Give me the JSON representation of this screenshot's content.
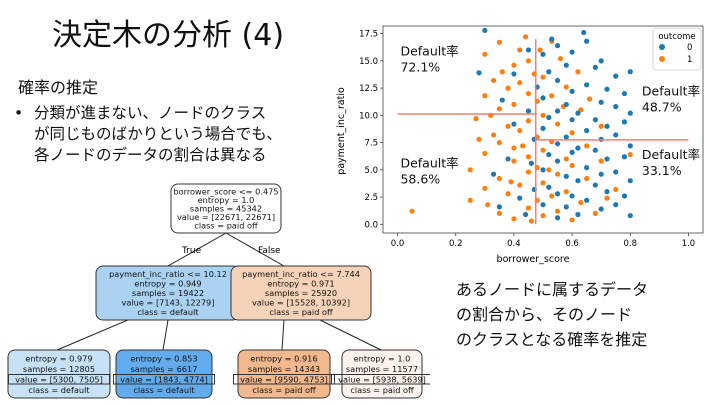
{
  "slide": {
    "title": "決定木の分析 (4)",
    "subtitle": "確率の推定",
    "bullet_marker": "•",
    "bullet_lines": [
      "分類が進まない、ノードのクラス",
      "が同じものばかりという場合でも、",
      "各ノードのデータの割合は異なる"
    ],
    "note_lines": [
      "あるノードに属するデータ",
      "の割合から、そのノード",
      "のクラスとなる確率を推定"
    ]
  },
  "tree": {
    "edge_true": "True",
    "edge_false": "False",
    "nodes": [
      {
        "id": "root",
        "fill": "#ffffff",
        "lines": [
          "borrower_score <= 0.475",
          "entropy = 1.0",
          "samples = 45342",
          "value = [22671, 22671]",
          "class = paid off"
        ]
      },
      {
        "id": "left",
        "fill": "#a9d2f3",
        "lines": [
          "payment_inc_ratio <= 10.12",
          "entropy = 0.949",
          "samples = 19422",
          "value = [7143, 12279]",
          "class = default"
        ]
      },
      {
        "id": "right",
        "fill": "#f6d3b8",
        "lines": [
          "payment_inc_ratio <= 7.744",
          "entropy = 0.971",
          "samples = 25920",
          "value = [15528, 10392]",
          "class = paid off"
        ]
      },
      {
        "id": "ll",
        "fill": "#c7e2f7",
        "lines": [
          "entropy = 0.979",
          "samples = 12805",
          "value = [5300, 7505]",
          "class = default"
        ]
      },
      {
        "id": "lr",
        "fill": "#62aced",
        "lines": [
          "entropy = 0.853",
          "samples = 6617",
          "value = [1843, 4774]",
          "class = default"
        ]
      },
      {
        "id": "rl",
        "fill": "#f2b88e",
        "lines": [
          "entropy = 0.916",
          "samples = 14343",
          "value = [9590, 4753]",
          "class = paid off"
        ]
      },
      {
        "id": "rr",
        "fill": "#fdf3ec",
        "lines": [
          "entropy = 1.0",
          "samples = 11577",
          "value = [5938, 5639]",
          "class = paid off"
        ]
      }
    ]
  },
  "chart_data": {
    "type": "scatter",
    "xlabel": "borrower_score",
    "ylabel": "payment_inc_ratio",
    "xlim": [
      -0.05,
      1.05
    ],
    "ylim": [
      -0.8,
      18.2
    ],
    "xticks": [
      0.0,
      0.2,
      0.4,
      0.6,
      0.8,
      1.0
    ],
    "xtick_labels": [
      "0.0",
      "0.2",
      "0.4",
      "0.6",
      "0.8",
      "1.0"
    ],
    "yticks": [
      0.0,
      2.5,
      5.0,
      7.5,
      10.0,
      12.5,
      15.0,
      17.5
    ],
    "ytick_labels": [
      "0.0",
      "2.5",
      "5.0",
      "7.5",
      "10.0",
      "12.5",
      "15.0",
      "17.5"
    ],
    "legend": {
      "title": "outcome",
      "placement": "top-right",
      "entries": [
        "0",
        "1"
      ]
    },
    "colors": {
      "0": "#1f77b4",
      "1": "#ff7f0e",
      "split": "#f08070"
    },
    "splits": [
      {
        "orientation": "vertical",
        "x": 0.475,
        "y0": 0.0,
        "y1": 17.0
      },
      {
        "orientation": "horizontal",
        "y": 10.12,
        "x0": 0.0,
        "x1": 0.475
      },
      {
        "orientation": "horizontal",
        "y": 7.744,
        "x0": 0.475,
        "x1": 1.0
      }
    ],
    "annotations": [
      {
        "text": [
          "Default率",
          "72.1%"
        ],
        "x": 0.01,
        "y": 15.5
      },
      {
        "text": [
          "Default率",
          "58.6%"
        ],
        "x": 0.01,
        "y": 5.2
      },
      {
        "text": [
          "Default率",
          "48.7%"
        ],
        "x": 0.84,
        "y": 11.8
      },
      {
        "text": [
          "Default率",
          "33.1%"
        ],
        "x": 0.84,
        "y": 6.0
      }
    ],
    "series": [
      {
        "name": "1",
        "points": [
          [
            0.05,
            1.2
          ],
          [
            0.25,
            2.2
          ],
          [
            0.25,
            5.0
          ],
          [
            0.27,
            9.7
          ],
          [
            0.3,
            3.3
          ],
          [
            0.3,
            6.5
          ],
          [
            0.3,
            11.8
          ],
          [
            0.3,
            15.6
          ],
          [
            0.33,
            8.2
          ],
          [
            0.33,
            13.2
          ],
          [
            0.35,
            1.0
          ],
          [
            0.35,
            4.2
          ],
          [
            0.35,
            7.5
          ],
          [
            0.35,
            10.6
          ],
          [
            0.35,
            16.7
          ],
          [
            0.38,
            2.8
          ],
          [
            0.38,
            9.0
          ],
          [
            0.38,
            12.5
          ],
          [
            0.4,
            0.5
          ],
          [
            0.4,
            5.8
          ],
          [
            0.4,
            7.0
          ],
          [
            0.4,
            11.0
          ],
          [
            0.4,
            14.6
          ],
          [
            0.42,
            3.6
          ],
          [
            0.42,
            8.6
          ],
          [
            0.42,
            13.0
          ],
          [
            0.42,
            16.0
          ],
          [
            0.45,
            1.5
          ],
          [
            0.45,
            4.8
          ],
          [
            0.45,
            6.2
          ],
          [
            0.45,
            9.5
          ],
          [
            0.45,
            12.0
          ],
          [
            0.45,
            15.0
          ],
          [
            0.48,
            2.2
          ],
          [
            0.48,
            5.2
          ],
          [
            0.48,
            8.0
          ],
          [
            0.48,
            11.3
          ],
          [
            0.5,
            0.8
          ],
          [
            0.5,
            3.8
          ],
          [
            0.5,
            6.8
          ],
          [
            0.5,
            10.0
          ],
          [
            0.5,
            13.5
          ],
          [
            0.53,
            2.6
          ],
          [
            0.53,
            7.6
          ],
          [
            0.53,
            11.8
          ],
          [
            0.53,
            16.8
          ],
          [
            0.55,
            1.2
          ],
          [
            0.55,
            4.6
          ],
          [
            0.55,
            9.2
          ],
          [
            0.58,
            3.0
          ],
          [
            0.58,
            6.0
          ],
          [
            0.58,
            12.6
          ],
          [
            0.6,
            0.4
          ],
          [
            0.6,
            5.4
          ],
          [
            0.6,
            8.4
          ],
          [
            0.63,
            2.0
          ],
          [
            0.63,
            10.5
          ],
          [
            0.65,
            4.2
          ],
          [
            0.65,
            7.2
          ],
          [
            0.68,
            1.0
          ],
          [
            0.7,
            5.8
          ],
          [
            0.7,
            9.0
          ],
          [
            0.75,
            3.2
          ],
          [
            0.8,
            6.4
          ],
          [
            0.28,
            7.8
          ],
          [
            0.32,
            10.0
          ],
          [
            0.36,
            14.0
          ],
          [
            0.43,
            7.2
          ],
          [
            0.47,
            13.8
          ],
          [
            0.52,
            5.0
          ],
          [
            0.57,
            10.8
          ],
          [
            0.62,
            14.0
          ],
          [
            0.44,
            17.2
          ],
          [
            0.39,
            3.9
          ],
          [
            0.31,
            1.8
          ],
          [
            0.56,
            15.2
          ],
          [
            0.49,
            16.0
          ],
          [
            0.66,
            11.5
          ],
          [
            0.72,
            2.4
          ],
          [
            0.46,
            0.3
          ]
        ]
      },
      {
        "name": "0",
        "points": [
          [
            0.3,
            17.8
          ],
          [
            0.35,
            1.6
          ],
          [
            0.38,
            6.0
          ],
          [
            0.4,
            9.2
          ],
          [
            0.42,
            2.4
          ],
          [
            0.45,
            10.4
          ],
          [
            0.45,
            16.0
          ],
          [
            0.47,
            3.2
          ],
          [
            0.47,
            7.8
          ],
          [
            0.48,
            12.6
          ],
          [
            0.5,
            1.8
          ],
          [
            0.5,
            5.0
          ],
          [
            0.5,
            8.8
          ],
          [
            0.5,
            11.6
          ],
          [
            0.5,
            15.6
          ],
          [
            0.52,
            3.4
          ],
          [
            0.52,
            6.4
          ],
          [
            0.52,
            9.8
          ],
          [
            0.52,
            14.0
          ],
          [
            0.55,
            0.6
          ],
          [
            0.55,
            2.8
          ],
          [
            0.55,
            5.8
          ],
          [
            0.55,
            7.4
          ],
          [
            0.55,
            10.4
          ],
          [
            0.55,
            13.2
          ],
          [
            0.55,
            16.4
          ],
          [
            0.58,
            1.6
          ],
          [
            0.58,
            4.4
          ],
          [
            0.58,
            8.0
          ],
          [
            0.58,
            11.0
          ],
          [
            0.58,
            14.6
          ],
          [
            0.6,
            2.6
          ],
          [
            0.6,
            6.6
          ],
          [
            0.6,
            9.6
          ],
          [
            0.6,
            12.2
          ],
          [
            0.6,
            15.8
          ],
          [
            0.62,
            0.9
          ],
          [
            0.62,
            4.0
          ],
          [
            0.62,
            7.0
          ],
          [
            0.62,
            10.2
          ],
          [
            0.65,
            2.2
          ],
          [
            0.65,
            5.2
          ],
          [
            0.65,
            8.6
          ],
          [
            0.65,
            12.8
          ],
          [
            0.65,
            16.8
          ],
          [
            0.68,
            3.6
          ],
          [
            0.68,
            6.8
          ],
          [
            0.68,
            9.6
          ],
          [
            0.68,
            14.4
          ],
          [
            0.7,
            1.4
          ],
          [
            0.7,
            4.6
          ],
          [
            0.7,
            7.8
          ],
          [
            0.7,
            11.2
          ],
          [
            0.7,
            15.0
          ],
          [
            0.72,
            3.0
          ],
          [
            0.72,
            6.0
          ],
          [
            0.72,
            9.0
          ],
          [
            0.72,
            12.4
          ],
          [
            0.75,
            1.8
          ],
          [
            0.75,
            4.8
          ],
          [
            0.75,
            8.2
          ],
          [
            0.75,
            10.8
          ],
          [
            0.75,
            13.6
          ],
          [
            0.78,
            2.6
          ],
          [
            0.78,
            6.2
          ],
          [
            0.78,
            9.4
          ],
          [
            0.78,
            12.0
          ],
          [
            0.8,
            0.8
          ],
          [
            0.8,
            4.0
          ],
          [
            0.8,
            7.2
          ],
          [
            0.8,
            10.2
          ],
          [
            0.8,
            14.0
          ],
          [
            0.4,
            13.8
          ],
          [
            0.33,
            4.6
          ],
          [
            0.44,
            0.9
          ],
          [
            0.36,
            11.4
          ],
          [
            0.28,
            13.9
          ],
          [
            0.46,
            5.6
          ],
          [
            0.53,
            17.0
          ],
          [
            0.64,
            17.6
          ]
        ]
      }
    ]
  }
}
